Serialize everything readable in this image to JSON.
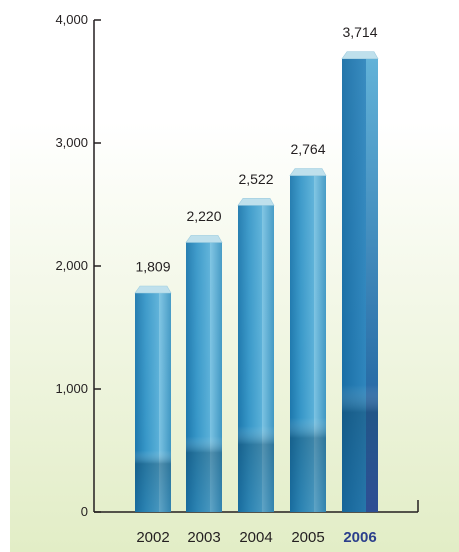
{
  "chart_data": {
    "type": "bar",
    "categories": [
      "2002",
      "2003",
      "2004",
      "2005",
      "2006"
    ],
    "values": [
      1809,
      2220,
      2522,
      2764,
      3714
    ],
    "data_labels": [
      "1,809",
      "2,220",
      "2,522",
      "2,764",
      "3,714"
    ],
    "highlight_category": "2006",
    "ylim": [
      0,
      4000
    ],
    "y_ticks": [
      0,
      1000,
      2000,
      3000,
      4000
    ],
    "y_tick_labels": [
      "0",
      "1,000",
      "2,000",
      "3,000",
      "4,000"
    ],
    "grid": false,
    "legend": "none",
    "title": "",
    "xlabel": "",
    "ylabel": ""
  },
  "colors": {
    "background_top": "#ffffff",
    "background_bottom": "#e5efcb",
    "bar_dark": "#0f5e8f",
    "bar_mid": "#2e8fc2",
    "bar_light": "#7cc0e0",
    "bar_top": "#b9dde9",
    "highlight_label": "#2b3f8c",
    "axis": "#231f20"
  }
}
